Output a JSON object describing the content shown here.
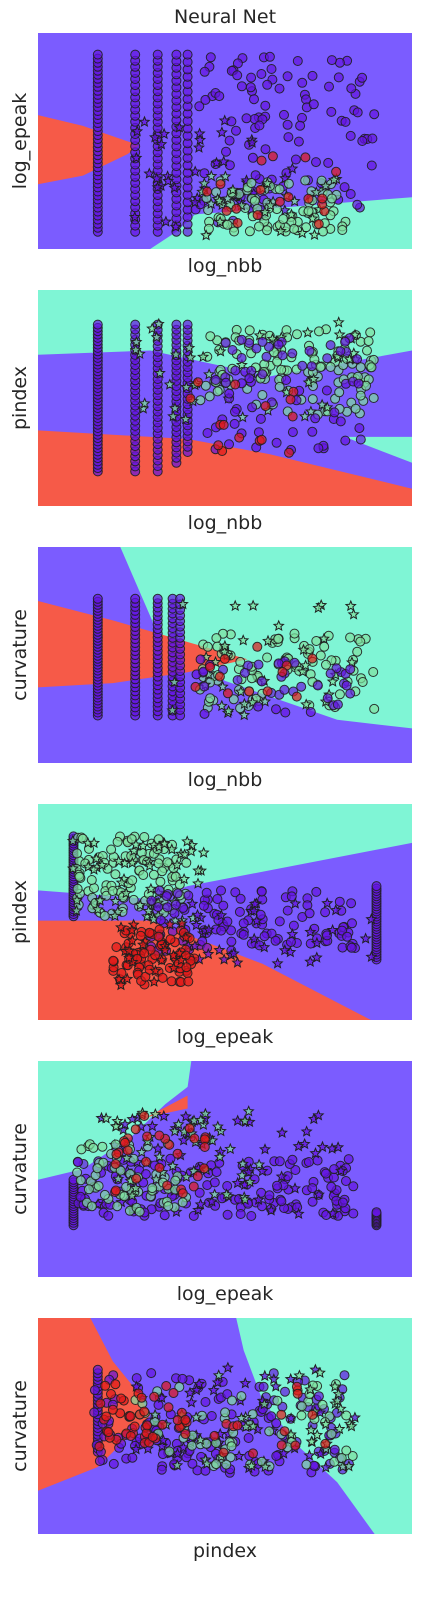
{
  "figure": {
    "title": "Neural Net"
  },
  "colors": {
    "region_blue": "#7b5cff",
    "region_cyan": "#7ff5d5",
    "region_red": "#f65a48",
    "class_0_point": "#6414e0",
    "class_1_point": "#7fe0a0",
    "class_2_point": "#e01818",
    "marker_edge": "#1f1f1f"
  },
  "chart_data": [
    {
      "type": "scatter",
      "subtype": "decision-boundary",
      "xlabel": "log_nbb",
      "ylabel": "log_epeak",
      "ticks_shown": false,
      "grid": false,
      "regions": [
        {
          "class": "cyan",
          "polygon": [
            [
              0.3,
              0
            ],
            [
              0.37,
              0.08
            ],
            [
              0.42,
              0.16
            ],
            [
              1,
              0.24
            ],
            [
              1,
              0
            ],
            [
              0.3,
              0
            ]
          ]
        },
        {
          "class": "red",
          "polygon": [
            [
              0,
              0.3
            ],
            [
              0.12,
              0.34
            ],
            [
              0.24,
              0.44
            ],
            [
              0.27,
              0.48
            ],
            [
              0.12,
              0.57
            ],
            [
              0,
              0.62
            ]
          ]
        }
      ],
      "point_clusters": [
        {
          "class": 0,
          "marker": "o",
          "count": 110,
          "xr": [
            0.42,
            0.9
          ],
          "yr": [
            0.12,
            0.9
          ]
        },
        {
          "class": 0,
          "marker": "*",
          "count": 40,
          "xr": [
            0.25,
            0.7
          ],
          "yr": [
            0.1,
            0.6
          ]
        },
        {
          "class": 1,
          "marker": "o",
          "count": 80,
          "xr": [
            0.45,
            0.83
          ],
          "yr": [
            0.08,
            0.32
          ]
        },
        {
          "class": 1,
          "marker": "*",
          "count": 30,
          "xr": [
            0.4,
            0.8
          ],
          "yr": [
            0.05,
            0.35
          ]
        },
        {
          "class": 2,
          "marker": "o",
          "count": 18,
          "xr": [
            0.45,
            0.85
          ],
          "yr": [
            0.08,
            0.45
          ]
        }
      ],
      "point_columns": [
        {
          "x": 0.16,
          "yr": [
            0.08,
            0.9
          ],
          "count": 45
        },
        {
          "x": 0.26,
          "yr": [
            0.08,
            0.9
          ],
          "count": 30
        },
        {
          "x": 0.32,
          "yr": [
            0.08,
            0.9
          ],
          "count": 30
        },
        {
          "x": 0.37,
          "yr": [
            0.08,
            0.9
          ],
          "count": 28
        },
        {
          "x": 0.4,
          "yr": [
            0.08,
            0.9
          ],
          "count": 25
        }
      ]
    },
    {
      "type": "scatter",
      "subtype": "decision-boundary",
      "xlabel": "log_nbb",
      "ylabel": "pindex",
      "ticks_shown": false,
      "grid": false,
      "regions": [
        {
          "class": "cyan",
          "polygon": [
            [
              0,
              1
            ],
            [
              1,
              1
            ],
            [
              1,
              0.72
            ],
            [
              0.62,
              0.6
            ],
            [
              0.3,
              0.72
            ],
            [
              0,
              0.7
            ]
          ]
        },
        {
          "class": "red",
          "polygon": [
            [
              0,
              0.35
            ],
            [
              0.4,
              0.31
            ],
            [
              0.62,
              0.24
            ],
            [
              1,
              0.08
            ],
            [
              1,
              0
            ],
            [
              0,
              0
            ]
          ]
        },
        {
          "class": "cyan",
          "polygon": [
            [
              0.82,
              0.32
            ],
            [
              1,
              0.32
            ],
            [
              1,
              0.2
            ]
          ]
        }
      ],
      "point_clusters": [
        {
          "class": 1,
          "marker": "o",
          "count": 120,
          "xr": [
            0.43,
            0.9
          ],
          "yr": [
            0.42,
            0.82
          ]
        },
        {
          "class": 1,
          "marker": "*",
          "count": 50,
          "xr": [
            0.25,
            0.85
          ],
          "yr": [
            0.4,
            0.85
          ]
        },
        {
          "class": 0,
          "marker": "o",
          "count": 70,
          "xr": [
            0.45,
            0.87
          ],
          "yr": [
            0.25,
            0.78
          ]
        },
        {
          "class": 2,
          "marker": "o",
          "count": 15,
          "xr": [
            0.4,
            0.7
          ],
          "yr": [
            0.2,
            0.6
          ]
        }
      ],
      "point_columns": [
        {
          "x": 0.16,
          "yr": [
            0.16,
            0.84
          ],
          "count": 45
        },
        {
          "x": 0.26,
          "yr": [
            0.16,
            0.84
          ],
          "count": 30
        },
        {
          "x": 0.32,
          "yr": [
            0.16,
            0.84
          ],
          "count": 28
        },
        {
          "x": 0.37,
          "yr": [
            0.2,
            0.84
          ],
          "count": 28
        },
        {
          "x": 0.4,
          "yr": [
            0.25,
            0.84
          ],
          "count": 25
        }
      ]
    },
    {
      "type": "scatter",
      "subtype": "decision-boundary",
      "xlabel": "log_nbb",
      "ylabel": "curvature",
      "ticks_shown": false,
      "grid": false,
      "regions": [
        {
          "class": "cyan",
          "polygon": [
            [
              0.22,
              1
            ],
            [
              1,
              1
            ],
            [
              1,
              0.16
            ],
            [
              0.8,
              0.2
            ],
            [
              0.5,
              0.38
            ],
            [
              0.32,
              0.6
            ],
            [
              0.22,
              1
            ]
          ]
        },
        {
          "class": "red",
          "polygon": [
            [
              0,
              0.75
            ],
            [
              0.2,
              0.66
            ],
            [
              0.4,
              0.56
            ],
            [
              0.56,
              0.48
            ],
            [
              0.4,
              0.42
            ],
            [
              0.2,
              0.37
            ],
            [
              0,
              0.35
            ]
          ]
        }
      ],
      "point_clusters": [
        {
          "class": 1,
          "marker": "o",
          "count": 90,
          "xr": [
            0.43,
            0.9
          ],
          "yr": [
            0.25,
            0.6
          ]
        },
        {
          "class": 1,
          "marker": "*",
          "count": 40,
          "xr": [
            0.35,
            0.85
          ],
          "yr": [
            0.22,
            0.75
          ]
        },
        {
          "class": 0,
          "marker": "o",
          "count": 40,
          "xr": [
            0.42,
            0.85
          ],
          "yr": [
            0.22,
            0.48
          ]
        },
        {
          "class": 2,
          "marker": "o",
          "count": 12,
          "xr": [
            0.35,
            0.75
          ],
          "yr": [
            0.3,
            0.55
          ]
        }
      ],
      "point_columns": [
        {
          "x": 0.16,
          "yr": [
            0.22,
            0.76
          ],
          "count": 40
        },
        {
          "x": 0.26,
          "yr": [
            0.22,
            0.76
          ],
          "count": 30
        },
        {
          "x": 0.32,
          "yr": [
            0.22,
            0.76
          ],
          "count": 28
        },
        {
          "x": 0.36,
          "yr": [
            0.22,
            0.76
          ],
          "count": 25
        },
        {
          "x": 0.38,
          "yr": [
            0.22,
            0.76
          ],
          "count": 22
        }
      ]
    },
    {
      "type": "scatter",
      "subtype": "decision-boundary",
      "xlabel": "log_epeak",
      "ylabel": "pindex",
      "ticks_shown": false,
      "grid": false,
      "regions": [
        {
          "class": "cyan",
          "polygon": [
            [
              0,
              1
            ],
            [
              1,
              1
            ],
            [
              1,
              0.82
            ],
            [
              0.4,
              0.62
            ],
            [
              0.3,
              0.56
            ],
            [
              0,
              0.6
            ]
          ]
        },
        {
          "class": "red",
          "polygon": [
            [
              0,
              0.46
            ],
            [
              0.3,
              0.46
            ],
            [
              0.6,
              0.26
            ],
            [
              0.89,
              0
            ],
            [
              0,
              0
            ]
          ]
        }
      ],
      "point_clusters": [
        {
          "class": 1,
          "marker": "o",
          "count": 110,
          "xr": [
            0.1,
            0.4
          ],
          "yr": [
            0.48,
            0.85
          ]
        },
        {
          "class": 1,
          "marker": "*",
          "count": 60,
          "xr": [
            0.09,
            0.45
          ],
          "yr": [
            0.45,
            0.85
          ]
        },
        {
          "class": 0,
          "marker": "o",
          "count": 110,
          "xr": [
            0.3,
            0.85
          ],
          "yr": [
            0.32,
            0.6
          ]
        },
        {
          "class": 0,
          "marker": "*",
          "count": 40,
          "xr": [
            0.4,
            0.9
          ],
          "yr": [
            0.25,
            0.55
          ]
        },
        {
          "class": 2,
          "marker": "o",
          "count": 80,
          "xr": [
            0.2,
            0.42
          ],
          "yr": [
            0.16,
            0.42
          ]
        },
        {
          "class": 2,
          "marker": "*",
          "count": 25,
          "xr": [
            0.2,
            0.4
          ],
          "yr": [
            0.16,
            0.45
          ]
        }
      ],
      "point_columns": [
        {
          "x": 0.095,
          "yr": [
            0.48,
            0.85
          ],
          "count": 35
        },
        {
          "x": 0.905,
          "yr": [
            0.28,
            0.62
          ],
          "count": 30
        }
      ]
    },
    {
      "type": "scatter",
      "subtype": "decision-boundary",
      "xlabel": "log_epeak",
      "ylabel": "curvature",
      "ticks_shown": false,
      "grid": false,
      "regions": [
        {
          "class": "cyan",
          "polygon": [
            [
              0,
              1
            ],
            [
              0.41,
              1
            ],
            [
              0.4,
              0.88
            ],
            [
              0.34,
              0.8
            ],
            [
              0.25,
              0.65
            ],
            [
              0.12,
              0.5
            ],
            [
              0,
              0.45
            ]
          ]
        },
        {
          "class": "red",
          "polygon": [
            [
              0.4,
              0.84
            ],
            [
              0.29,
              0.74
            ],
            [
              0.4,
              0.78
            ]
          ]
        }
      ],
      "point_clusters": [
        {
          "class": 0,
          "marker": "o",
          "count": 150,
          "xr": [
            0.1,
            0.85
          ],
          "yr": [
            0.28,
            0.55
          ]
        },
        {
          "class": 0,
          "marker": "*",
          "count": 60,
          "xr": [
            0.15,
            0.85
          ],
          "yr": [
            0.28,
            0.75
          ]
        },
        {
          "class": 1,
          "marker": "o",
          "count": 60,
          "xr": [
            0.1,
            0.4
          ],
          "yr": [
            0.3,
            0.62
          ]
        },
        {
          "class": 1,
          "marker": "*",
          "count": 50,
          "xr": [
            0.17,
            0.6
          ],
          "yr": [
            0.35,
            0.78
          ]
        },
        {
          "class": 2,
          "marker": "o",
          "count": 30,
          "xr": [
            0.2,
            0.45
          ],
          "yr": [
            0.35,
            0.75
          ]
        }
      ],
      "point_columns": [
        {
          "x": 0.095,
          "yr": [
            0.24,
            0.45
          ],
          "count": 20
        },
        {
          "x": 0.905,
          "yr": [
            0.24,
            0.3
          ],
          "count": 10
        }
      ]
    },
    {
      "type": "scatter",
      "subtype": "decision-boundary",
      "xlabel": "pindex",
      "ylabel": "curvature",
      "ticks_shown": false,
      "grid": false,
      "regions": [
        {
          "class": "red",
          "polygon": [
            [
              0,
              1
            ],
            [
              0.14,
              1
            ],
            [
              0.2,
              0.8
            ],
            [
              0.27,
              0.65
            ],
            [
              0.3,
              0.55
            ],
            [
              0.16,
              0.31
            ],
            [
              0,
              0.2
            ]
          ]
        },
        {
          "class": "cyan",
          "polygon": [
            [
              0.53,
              1
            ],
            [
              1,
              1
            ],
            [
              1,
              0
            ],
            [
              0.9,
              0
            ],
            [
              0.8,
              0.24
            ],
            [
              0.7,
              0.4
            ],
            [
              0.6,
              0.62
            ],
            [
              0.55,
              0.85
            ]
          ]
        }
      ],
      "point_clusters": [
        {
          "class": 0,
          "marker": "o",
          "count": 150,
          "xr": [
            0.15,
            0.85
          ],
          "yr": [
            0.28,
            0.75
          ]
        },
        {
          "class": 0,
          "marker": "*",
          "count": 50,
          "xr": [
            0.25,
            0.85
          ],
          "yr": [
            0.3,
            0.78
          ]
        },
        {
          "class": 1,
          "marker": "o",
          "count": 60,
          "xr": [
            0.25,
            0.85
          ],
          "yr": [
            0.3,
            0.7
          ]
        },
        {
          "class": 1,
          "marker": "*",
          "count": 40,
          "xr": [
            0.3,
            0.85
          ],
          "yr": [
            0.3,
            0.75
          ]
        },
        {
          "class": 2,
          "marker": "o",
          "count": 45,
          "xr": [
            0.16,
            0.4
          ],
          "yr": [
            0.4,
            0.7
          ]
        },
        {
          "class": 2,
          "marker": "o",
          "count": 15,
          "xr": [
            0.45,
            0.8
          ],
          "yr": [
            0.35,
            0.7
          ]
        }
      ],
      "point_columns": [
        {
          "x": 0.16,
          "yr": [
            0.38,
            0.76
          ],
          "count": 25
        }
      ]
    }
  ]
}
